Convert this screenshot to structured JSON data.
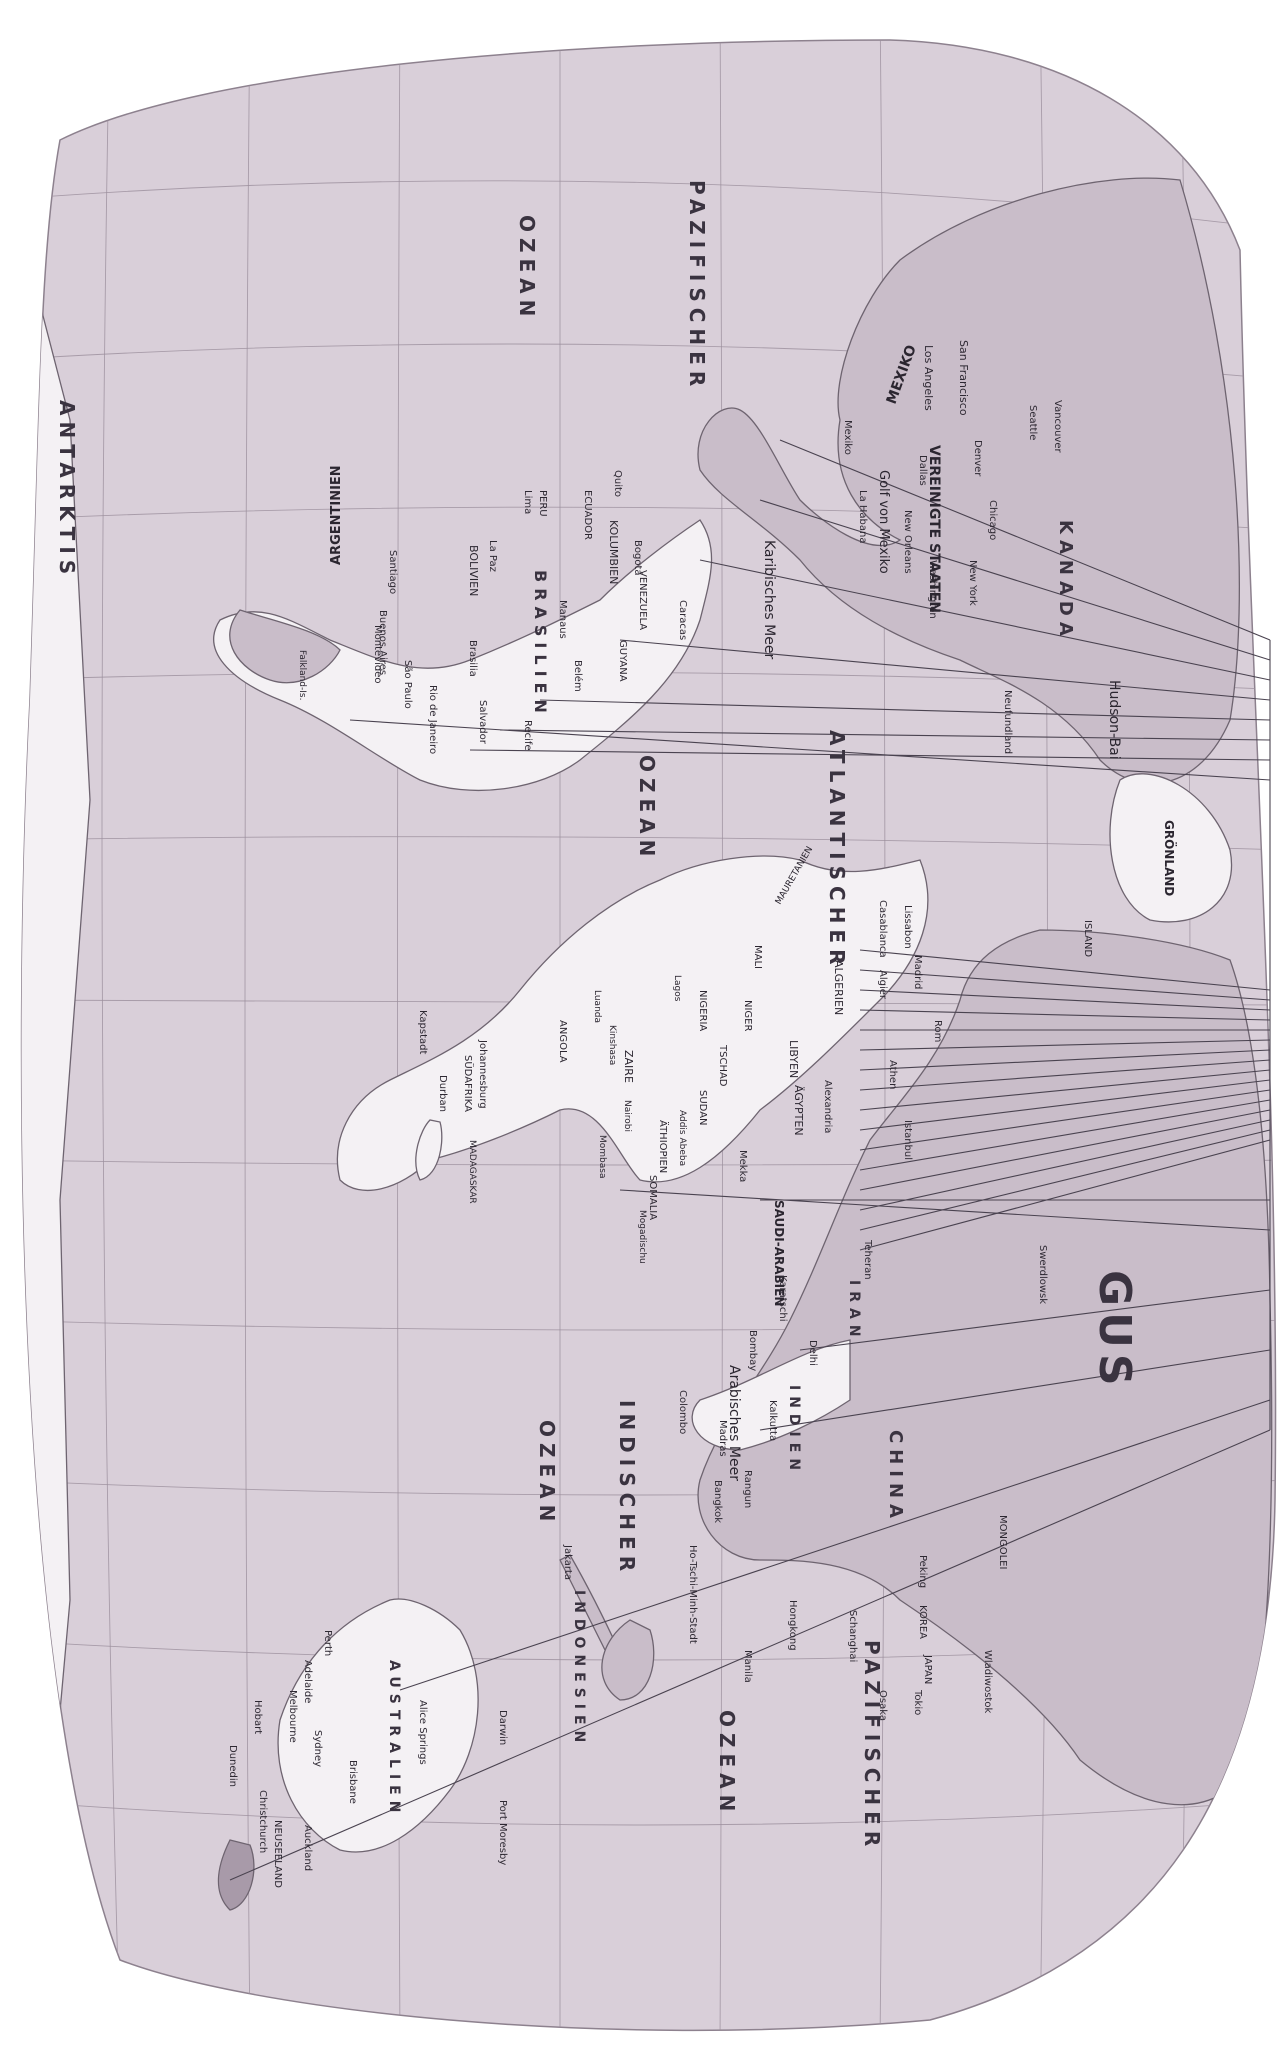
{
  "map": {
    "colors": {
      "paper": "#ffffff",
      "sea": "#d9cfd9",
      "land_light": "#f4f1f4",
      "land_mid": "#c9bdc9",
      "land_dark": "#a89aa9",
      "leader": "#4a4350"
    },
    "oceans": {
      "pacific_left_1": "PAZIFISCHER",
      "pacific_left_2": "OZEAN",
      "atlantic_1": "ATLANTISCHER",
      "atlantic_2": "OZEAN",
      "indian_1": "INDISCHER",
      "indian_2": "OZEAN",
      "pacific_right_1": "PAZIFISCHER",
      "pacific_right_2": "OZEAN",
      "karibisches": "Karibisches Meer",
      "arabisches": "Arabisches Meer",
      "hudson": "Hudson-Bai",
      "golf_mexiko": "Golf von Mexiko"
    },
    "regions": {
      "kanada": "KANADA",
      "usa": "VEREINIGTE STAATEN",
      "mexiko": "MEXIKO",
      "brasilien": "BRASILIEN",
      "argentinien": "ARGENTINIEN",
      "bolivien": "BOLIVIEN",
      "kolumbien": "KOLUMBIEN",
      "venezuela": "VENEZUELA",
      "guyana": "GUYANA",
      "peru": "PERU",
      "ecuador": "ECUADOR",
      "groenland": "GRÖNLAND",
      "island": "ISLAND",
      "gus": "GUS",
      "china": "CHINA",
      "indien": "INDIEN",
      "iran": "IRAN",
      "saudi": "SAUDI-ARABIEN",
      "algerien": "ALGERIEN",
      "libyen": "LIBYEN",
      "aegypten": "ÄGYPTEN",
      "mali": "MALI",
      "niger": "NIGER",
      "tschad": "TSCHAD",
      "sudan": "SUDAN",
      "nigeria": "NIGERIA",
      "zaire": "ZAIRE",
      "angola": "ANGOLA",
      "suedafrika": "SÜDAFRIKA",
      "aethiopien": "ÄTHIOPIEN",
      "somalia": "SOMALIA",
      "madagaskar": "MADAGASKAR",
      "indonesien": "INDONESIEN",
      "australien": "AUSTRALIEN",
      "neuseeland": "NEUSEELAND",
      "mongolei": "MONGOLEI",
      "japan": "JAPAN",
      "korea": "KOREA",
      "mauretanien": "MAURETANIEN",
      "antarktis": "ANTARKTIS"
    },
    "cities": {
      "san_francisco": "San Francisco",
      "los_angeles": "Los Angeles",
      "vancouver": "Vancouver",
      "seattle": "Seattle",
      "denver": "Denver",
      "dallas": "Dallas",
      "chicago": "Chicago",
      "new_york": "New York",
      "washington": "Washington",
      "new_orleans": "New Orleans",
      "mexiko_city": "Mexiko",
      "la_habana": "La Habana",
      "quito": "Quito",
      "lima": "Lima",
      "la_paz": "La Paz",
      "santiago": "Santiago",
      "buenos_aires": "Buenos Aires",
      "montevideo": "Montevideo",
      "sao_paulo": "São Paulo",
      "rio": "Rio de Janeiro",
      "brasilia": "Brasilia",
      "salvador": "Salvador",
      "recife": "Recife",
      "belem": "Belém",
      "manaus": "Manaus",
      "caracas": "Caracas",
      "bogota": "Bogotá",
      "newfoundland": "Neufundland",
      "falkland": "Falkland-Is.",
      "casablanca": "Casablanca",
      "lissabon": "Lissabon",
      "madrid": "Madrid",
      "algier": "Algier",
      "rom": "Rom",
      "athen": "Athen",
      "alexandria": "Alexandria",
      "istanbul": "Istanbul",
      "lagos": "Lagos",
      "luanda": "Luanda",
      "kinshasa": "Kinshasa",
      "nairobi": "Nairobi",
      "addis": "Addis Abeba",
      "mombasa": "Mombasa",
      "mogadischu": "Mogadischu",
      "johannesburg": "Johannesburg",
      "kapstadt": "Kapstadt",
      "durban": "Durban",
      "mekka": "Mekka",
      "teheran": "Teheran",
      "karatschi": "Karatschi",
      "bombay": "Bombay",
      "delhi": "Delhi",
      "madras": "Madras",
      "kalkutta": "Kalkutta",
      "colombo": "Colombo",
      "rangun": "Rangun",
      "bangkok": "Bangkok",
      "ho_chi_minh": "Ho-Tschi-Minh-Stadt",
      "hongkong": "Hongkong",
      "shanghai": "Schanghai",
      "peking": "Peking",
      "tokio": "Tokio",
      "osaka": "Osaka",
      "manila": "Manila",
      "jakarta": "Jakarta",
      "darwin": "Darwin",
      "perth": "Perth",
      "adelaide": "Adelaide",
      "melbourne": "Melbourne",
      "sydney": "Sydney",
      "brisbane": "Brisbane",
      "hobart": "Hobart",
      "auckland": "Auckland",
      "dunedin": "Dunedin",
      "christchurch": "Christchurch",
      "alice": "Alice Springs",
      "port_moresby": "Port Moresby",
      "wladiwostok": "Wladiwostok",
      "swerdlowsk": "Swerdlowsk"
    }
  }
}
